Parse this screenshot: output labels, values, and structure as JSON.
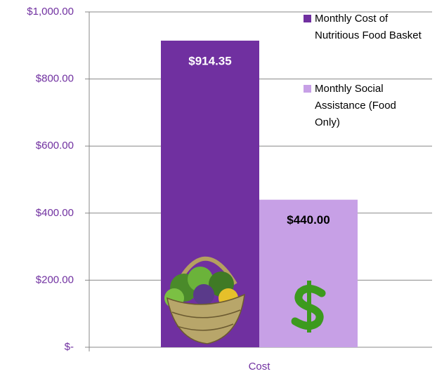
{
  "chart_data": {
    "type": "bar",
    "categories": [
      "Cost"
    ],
    "series": [
      {
        "name": "Monthly Cost of Nutritious Food Basket",
        "color": "#7030a0",
        "values": [
          914.35
        ],
        "value_labels": [
          "$914.35"
        ]
      },
      {
        "name": "Monthly Social Assistance (Food Only)",
        "color": "#c7a0e6",
        "values": [
          440
        ],
        "value_labels": [
          "$440.00"
        ]
      }
    ],
    "ylim": [
      0,
      1000
    ],
    "yticks": [
      {
        "value": 0,
        "label": "$-"
      },
      {
        "value": 200,
        "label": "$200.00"
      },
      {
        "value": 400,
        "label": "$400.00"
      },
      {
        "value": 600,
        "label": "$600.00"
      },
      {
        "value": 800,
        "label": "$800.00"
      },
      {
        "value": 1000,
        "label": "$1,000.00"
      }
    ],
    "grid": true,
    "legend": "top-right"
  }
}
